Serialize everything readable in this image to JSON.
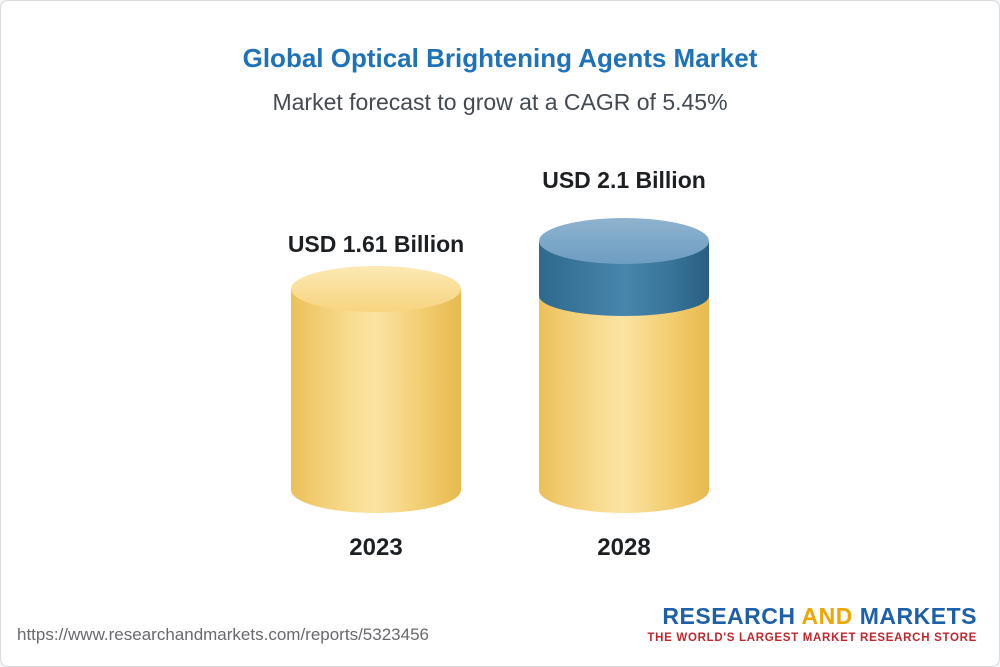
{
  "header": {
    "title": "Global Optical Brightening Agents Market",
    "subtitle": "Market forecast to grow at a CAGR of 5.45%"
  },
  "chart_data": {
    "type": "bar",
    "title": "Global Optical Brightening Agents Market",
    "subtitle": "Market forecast to grow at a CAGR of 5.45%",
    "cagr_percent": 5.45,
    "unit": "USD Billion",
    "categories": [
      "2023",
      "2028"
    ],
    "values": [
      1.61,
      2.1
    ],
    "bars": [
      {
        "category": "2023",
        "value": 1.61,
        "label": "USD 1.61 Billion",
        "color": "#f3cd6f"
      },
      {
        "category": "2028",
        "value": 2.1,
        "label": "USD 2.1 Billion",
        "color_base": "#f3cd6f",
        "color_growth": "#3d7ca3"
      }
    ],
    "ylim": [
      0,
      2.1
    ],
    "grid": false,
    "legend": "none",
    "colors": {
      "title": "#1e73b8",
      "cylinder_yellow": "#f3cd6f",
      "cylinder_blue": "#3d7ca3"
    }
  },
  "footer": {
    "url": "https://www.researchandmarkets.com/reports/5323456",
    "logo": {
      "part1": "RESEARCH",
      "part2": "AND",
      "part3": "MARKETS",
      "tagline": "THE WORLD'S LARGEST MARKET RESEARCH STORE",
      "colors": {
        "blue": "#1e5fa9",
        "gold": "#f0a500",
        "tagline_red": "#c2262c"
      }
    }
  }
}
